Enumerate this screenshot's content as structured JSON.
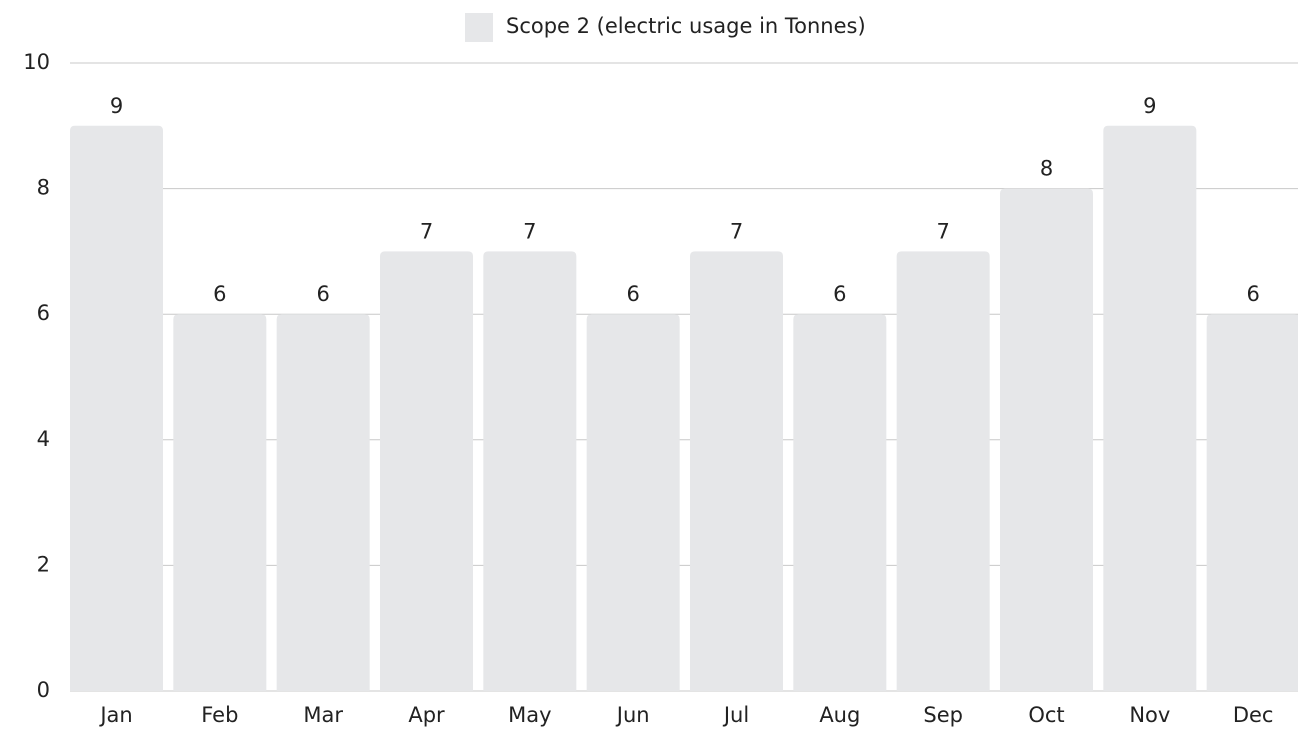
{
  "chart_data": {
    "type": "bar",
    "categories": [
      "Jan",
      "Feb",
      "Mar",
      "Apr",
      "May",
      "Jun",
      "Jul",
      "Aug",
      "Sep",
      "Oct",
      "Nov",
      "Dec"
    ],
    "series": [
      {
        "name": "Scope 2 (electric usage in Tonnes)",
        "color": "#e6e7e9",
        "values": [
          9,
          6,
          6,
          7,
          7,
          6,
          7,
          6,
          7,
          8,
          9,
          6
        ]
      }
    ],
    "ylim": [
      0,
      10
    ],
    "yticks": [
      0,
      2,
      4,
      6,
      8,
      10
    ],
    "grid": true,
    "legend": "top"
  }
}
